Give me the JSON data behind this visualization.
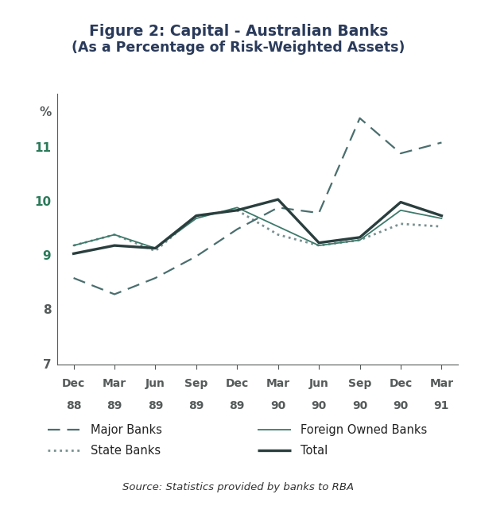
{
  "title_line1": "Figure 2: Capital - Australian Banks",
  "title_line2": "(As a Percentage of Risk-Weighted Assets)",
  "source": "Source: Statistics provided by banks to RBA",
  "x_labels_top": [
    "Dec",
    "Mar",
    "Jun",
    "Sep",
    "Dec",
    "Mar",
    "Jun",
    "Sep",
    "Dec",
    "Mar"
  ],
  "x_labels_bot": [
    "88",
    "89",
    "89",
    "89",
    "89",
    "90",
    "90",
    "90",
    "90",
    "91"
  ],
  "ylim": [
    7,
    12
  ],
  "yticks": [
    7,
    8,
    9,
    10,
    11
  ],
  "ylabel": "%",
  "major_banks": [
    8.6,
    8.3,
    8.6,
    9.0,
    9.5,
    9.9,
    9.8,
    11.55,
    10.9,
    11.1
  ],
  "foreign_owned_banks": [
    9.2,
    9.4,
    9.15,
    9.7,
    9.9,
    9.55,
    9.2,
    9.3,
    9.85,
    9.7
  ],
  "state_banks": [
    9.2,
    9.4,
    9.1,
    9.75,
    9.85,
    9.4,
    9.2,
    9.3,
    9.6,
    9.55
  ],
  "total": [
    9.05,
    9.2,
    9.15,
    9.75,
    9.85,
    10.05,
    9.25,
    9.35,
    10.0,
    9.75
  ],
  "color_major": "#4a6e6e",
  "color_foreign": "#3d7a6a",
  "color_state": "#7a9090",
  "color_total": "#2a3e3e",
  "color_ytick": "#2a7a5a",
  "color_axis": "#555a5a",
  "bg_color": "#ffffff",
  "title_color": "#2a3a5a"
}
